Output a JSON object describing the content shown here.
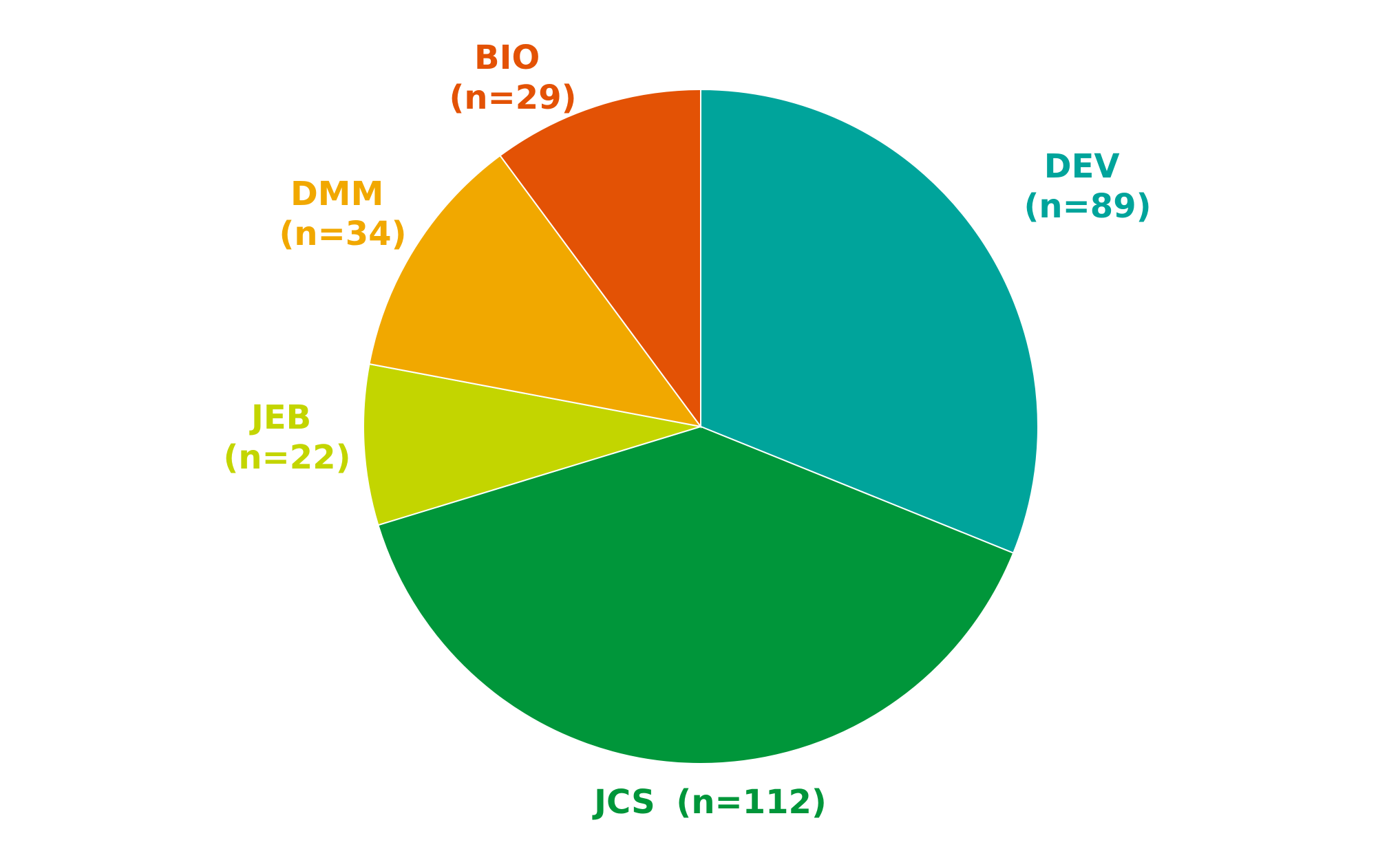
{
  "chart_data": {
    "type": "pie",
    "title": "",
    "start_angle_deg": 0,
    "direction": "clockwise",
    "slices": [
      {
        "label": "DEV",
        "count_text": "(n=89)",
        "value": 89,
        "color": "#00A49B"
      },
      {
        "label": "JCS",
        "count_text": "(n=112)",
        "value": 112,
        "color": "#00963A"
      },
      {
        "label": "JEB",
        "count_text": "(n=22)",
        "value": 22,
        "color": "#C3D500"
      },
      {
        "label": "DMM",
        "count_text": "(n=34)",
        "value": 34,
        "color": "#F1A800"
      },
      {
        "label": "BIO",
        "count_text": "(n=29)",
        "value": 29,
        "color": "#E35205"
      }
    ]
  }
}
